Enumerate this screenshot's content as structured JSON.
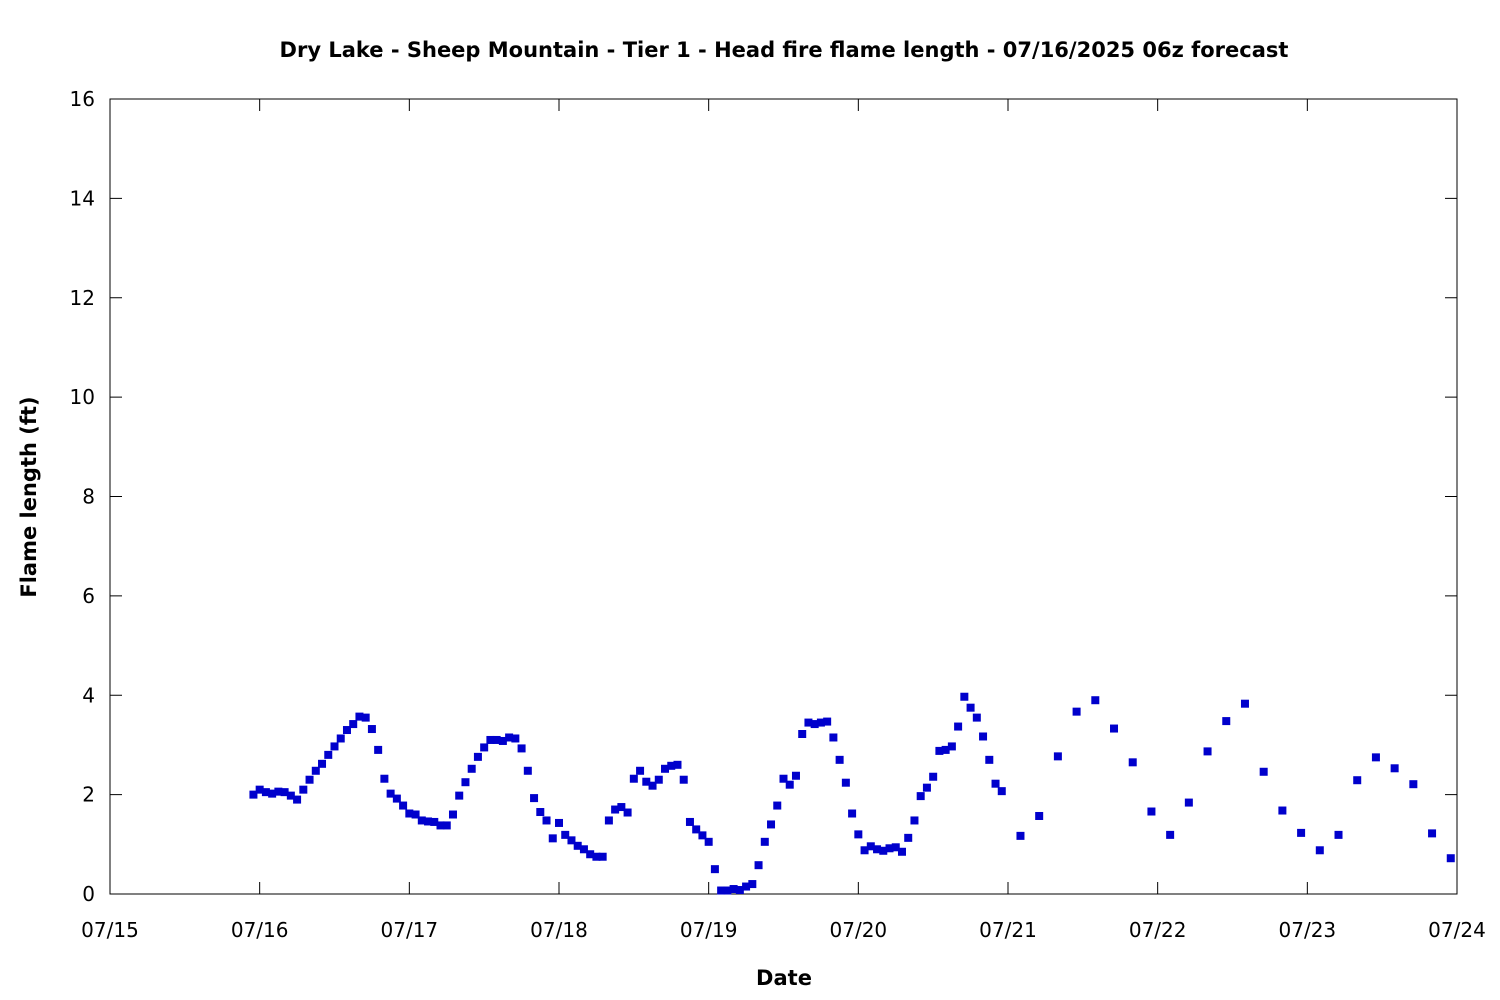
{
  "chart_data": {
    "type": "scatter",
    "title": "Dry Lake - Sheep Mountain - Tier 1 - Head fire flame length - 07/16/2025 06z forecast",
    "xlabel": "Date",
    "ylabel": "Flame length (ft)",
    "xlim": [
      "07/15 00:00",
      "07/24 00:00"
    ],
    "ylim": [
      0,
      16
    ],
    "x_ticks": [
      "07/15",
      "07/16",
      "07/17",
      "07/18",
      "07/19",
      "07/20",
      "07/21",
      "07/22",
      "07/23",
      "07/24"
    ],
    "y_ticks": [
      "0",
      "2",
      "4",
      "6",
      "8",
      "10",
      "12",
      "14",
      "16"
    ],
    "grid": false,
    "legend": "none",
    "marker_color": "#0000cc",
    "marker": "square",
    "series": [
      {
        "x": [
          "07/15 23:00",
          "07/16 00:00",
          "07/16 01:00",
          "07/16 02:00",
          "07/16 03:00",
          "07/16 04:00",
          "07/16 05:00",
          "07/16 06:00",
          "07/16 07:00",
          "07/16 08:00",
          "07/16 09:00",
          "07/16 10:00",
          "07/16 11:00",
          "07/16 12:00",
          "07/16 13:00",
          "07/16 14:00",
          "07/16 15:00",
          "07/16 16:00",
          "07/16 17:00",
          "07/16 18:00",
          "07/16 19:00",
          "07/16 20:00",
          "07/16 21:00",
          "07/16 22:00",
          "07/16 23:00",
          "07/17 00:00",
          "07/17 01:00",
          "07/17 02:00",
          "07/17 03:00",
          "07/17 04:00",
          "07/17 05:00",
          "07/17 06:00",
          "07/17 07:00",
          "07/17 08:00",
          "07/17 09:00",
          "07/17 10:00",
          "07/17 11:00",
          "07/17 12:00",
          "07/17 13:00",
          "07/17 14:00",
          "07/17 15:00",
          "07/17 16:00",
          "07/17 17:00",
          "07/17 18:00",
          "07/17 19:00",
          "07/17 20:00",
          "07/17 21:00",
          "07/17 22:00",
          "07/17 23:00",
          "07/18 00:00",
          "07/18 01:00",
          "07/18 02:00",
          "07/18 03:00",
          "07/18 04:00",
          "07/18 05:00",
          "07/18 06:00",
          "07/18 07:00",
          "07/18 08:00",
          "07/18 09:00",
          "07/18 10:00",
          "07/18 11:00",
          "07/18 12:00",
          "07/18 13:00",
          "07/18 14:00",
          "07/18 15:00",
          "07/18 16:00",
          "07/18 17:00",
          "07/18 18:00",
          "07/18 19:00",
          "07/18 20:00",
          "07/18 21:00",
          "07/18 22:00",
          "07/18 23:00",
          "07/19 00:00",
          "07/19 01:00",
          "07/19 02:00",
          "07/19 03:00",
          "07/19 04:00",
          "07/19 05:00",
          "07/19 06:00",
          "07/19 07:00",
          "07/19 08:00",
          "07/19 09:00",
          "07/19 10:00",
          "07/19 11:00",
          "07/19 12:00",
          "07/19 13:00",
          "07/19 14:00",
          "07/19 15:00",
          "07/19 16:00",
          "07/19 17:00",
          "07/19 18:00",
          "07/19 19:00",
          "07/19 20:00",
          "07/19 21:00",
          "07/19 22:00",
          "07/19 23:00",
          "07/20 00:00",
          "07/20 01:00",
          "07/20 02:00",
          "07/20 03:00",
          "07/20 04:00",
          "07/20 05:00",
          "07/20 06:00",
          "07/20 07:00",
          "07/20 08:00",
          "07/20 09:00",
          "07/20 10:00",
          "07/20 11:00",
          "07/20 12:00",
          "07/20 13:00",
          "07/20 14:00",
          "07/20 15:00",
          "07/20 16:00",
          "07/20 17:00",
          "07/20 18:00",
          "07/20 19:00",
          "07/20 20:00",
          "07/20 21:00",
          "07/20 22:00",
          "07/20 23:00",
          "07/21 02:00",
          "07/21 05:00",
          "07/21 08:00",
          "07/21 11:00",
          "07/21 14:00",
          "07/21 17:00",
          "07/21 20:00",
          "07/21 23:00",
          "07/22 02:00",
          "07/22 05:00",
          "07/22 08:00",
          "07/22 11:00",
          "07/22 14:00",
          "07/22 17:00",
          "07/22 20:00",
          "07/22 23:00",
          "07/23 02:00",
          "07/23 05:00",
          "07/23 08:00",
          "07/23 11:00",
          "07/23 14:00",
          "07/23 17:00",
          "07/23 20:00",
          "07/23 23:00"
        ],
        "y": [
          2.0,
          2.1,
          2.05,
          2.02,
          2.06,
          2.05,
          1.98,
          1.9,
          2.1,
          2.3,
          2.48,
          2.62,
          2.8,
          2.97,
          3.13,
          3.3,
          3.42,
          3.57,
          3.55,
          3.32,
          2.9,
          2.32,
          2.02,
          1.92,
          1.78,
          1.62,
          1.6,
          1.48,
          1.46,
          1.45,
          1.38,
          1.38,
          1.6,
          1.98,
          2.25,
          2.52,
          2.76,
          2.95,
          3.1,
          3.1,
          3.08,
          3.15,
          3.13,
          2.93,
          2.48,
          1.93,
          1.65,
          1.48,
          1.12,
          1.43,
          1.19,
          1.08,
          0.97,
          0.9,
          0.8,
          0.75,
          0.75,
          1.48,
          1.7,
          1.75,
          1.64,
          2.32,
          2.48,
          2.26,
          2.18,
          2.3,
          2.52,
          2.58,
          2.6,
          2.3,
          1.45,
          1.3,
          1.18,
          1.05,
          0.5,
          0.07,
          0.07,
          0.1,
          0.08,
          0.15,
          0.2,
          0.58,
          1.05,
          1.4,
          1.78,
          2.32,
          2.2,
          2.38,
          3.22,
          3.45,
          3.42,
          3.45,
          3.47,
          3.15,
          2.7,
          2.24,
          1.62,
          1.2,
          0.88,
          0.96,
          0.9,
          0.87,
          0.92,
          0.94,
          0.85,
          1.13,
          1.48,
          1.97,
          2.14,
          2.36,
          2.88,
          2.9,
          2.97,
          3.37,
          3.97,
          3.75,
          3.55,
          3.17,
          2.7,
          2.22,
          2.07,
          1.17,
          1.57,
          2.77,
          3.67,
          3.9,
          3.33,
          2.65,
          1.66,
          1.19,
          1.84,
          2.87,
          3.48,
          3.83,
          2.46,
          1.68,
          1.23,
          0.88,
          1.19,
          2.29,
          2.75,
          2.53,
          2.21,
          1.22,
          0.72
        ]
      }
    ]
  }
}
